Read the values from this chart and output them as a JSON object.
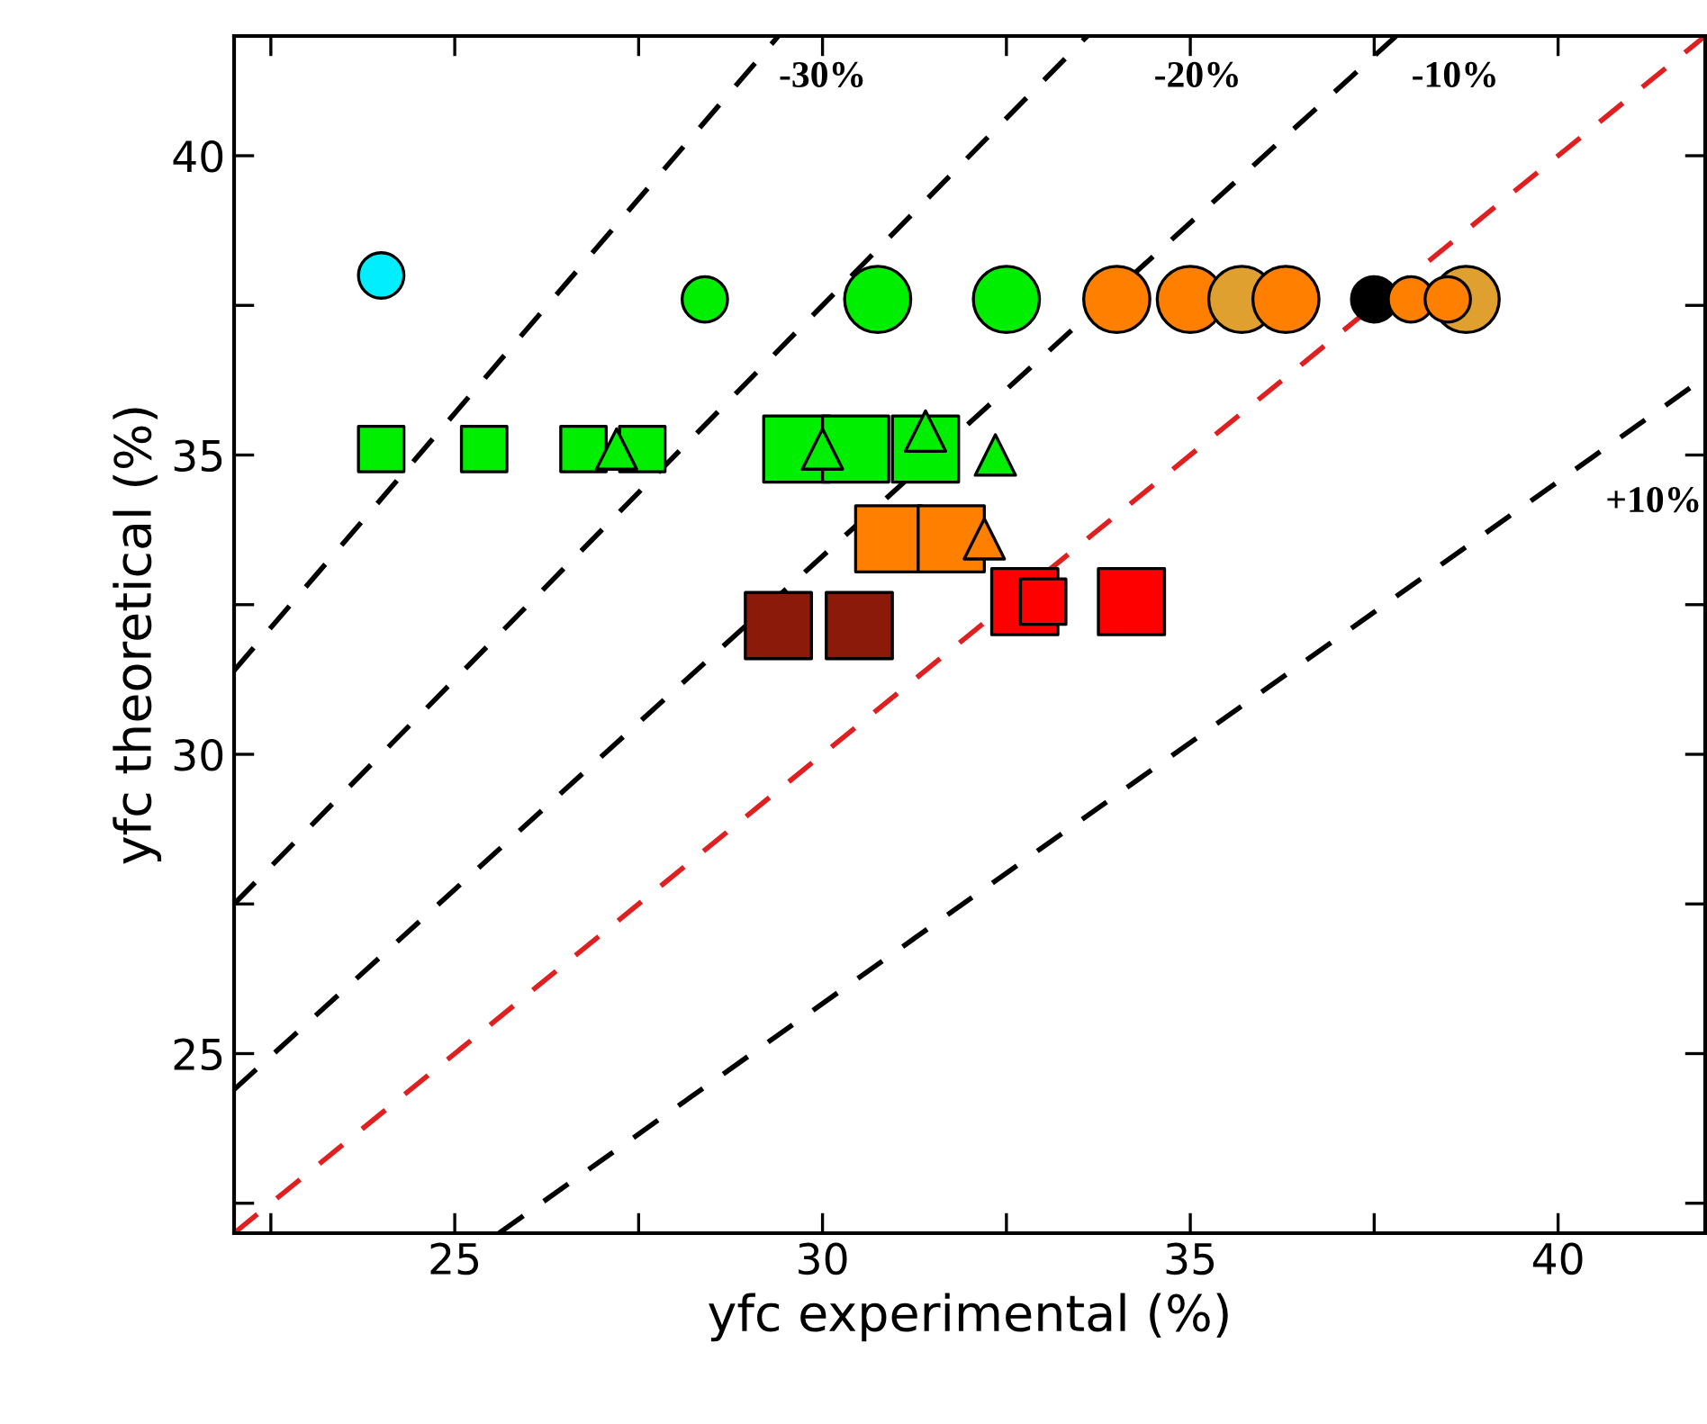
{
  "chart_data": {
    "type": "scatter",
    "xlabel": "yfc experimental (%)",
    "ylabel": "yfc theoretical (%)",
    "xlim": [
      22,
      42
    ],
    "ylim": [
      22,
      42
    ],
    "xticks": [
      {
        "value": 22.5,
        "label": null
      },
      25,
      {
        "value": 27.5,
        "label": null
      },
      30,
      {
        "value": 32.5,
        "label": null
      },
      35,
      {
        "value": 37.5,
        "label": null
      },
      40
    ],
    "yticks": [
      {
        "value": 22.5,
        "label": null
      },
      25,
      {
        "value": 27.5,
        "label": null
      },
      30,
      {
        "value": 32.5,
        "label": null
      },
      35,
      {
        "value": 37.5,
        "label": null
      },
      40
    ],
    "grid": false,
    "legend": false,
    "series": [
      {
        "type": "line",
        "x": [
          22,
          29.4
        ],
        "values": [
          31.4,
          42
        ],
        "color": "#000000",
        "line_style": "dashed",
        "marker": "none"
      },
      {
        "type": "line",
        "x": [
          22,
          33.6
        ],
        "values": [
          27.5,
          42
        ],
        "color": "#000000",
        "line_style": "dashed",
        "marker": "none"
      },
      {
        "type": "line",
        "x": [
          22,
          37.8
        ],
        "values": [
          24.4,
          42
        ],
        "color": "#000000",
        "line_style": "dashed",
        "marker": "none"
      },
      {
        "type": "line",
        "x": [
          22,
          42
        ],
        "values": [
          22,
          42
        ],
        "color": "#e02020",
        "line_style": "dashed",
        "marker": "none"
      },
      {
        "type": "line",
        "x": [
          25.6,
          42
        ],
        "values": [
          22,
          36.3
        ],
        "color": "#000000",
        "line_style": "dashed",
        "marker": "none"
      },
      {
        "marker": "circle",
        "x": [
          24.0,
          28.4,
          37.5,
          38.0,
          38.5
        ],
        "values": [
          38.0,
          37.6,
          37.6,
          37.6,
          37.6
        ],
        "colors": [
          "#00eeff",
          "#00ee00",
          "#000000",
          "#ff8000",
          "#ff8000"
        ]
      },
      {
        "marker": "circle",
        "x": [
          30.75,
          32.5,
          34.0,
          35.0,
          35.7,
          36.3,
          38.75
        ],
        "values": [
          37.6,
          37.6,
          37.6,
          37.6,
          37.6,
          37.6,
          37.6
        ],
        "colors": [
          "#00ee00",
          "#00ee00",
          "#ff8000",
          "#ff8000",
          "#e0a030",
          "#ff8000",
          "#e0a030"
        ]
      },
      {
        "marker": "square",
        "x": [
          24.0,
          25.4,
          26.75,
          27.55,
          33.0
        ],
        "values": [
          35.1,
          35.1,
          35.1,
          35.1,
          32.55
        ],
        "colors": [
          "#00ee00",
          "#00ee00",
          "#00ee00",
          "#00ee00",
          "#ff0000"
        ]
      },
      {
        "marker": "triangle",
        "x": [
          27.2,
          30.0,
          31.4,
          32.35,
          32.2
        ],
        "values": [
          35.1,
          35.1,
          35.4,
          35.0,
          33.6
        ],
        "colors": [
          "#00ee00",
          "#00ee00",
          "#00ee00",
          "#00ee00",
          "#ff8000"
        ]
      },
      {
        "marker": "square",
        "x": [
          29.65,
          30.45,
          31.4,
          30.9,
          31.75,
          29.4,
          30.5,
          32.75,
          34.2
        ],
        "values": [
          35.1,
          35.1,
          35.1,
          33.6,
          33.6,
          32.15,
          32.15,
          32.55,
          32.55
        ],
        "colors": [
          "#00ee00",
          "#00ee00",
          "#00ee00",
          "#ff8000",
          "#ff8000",
          "#8b1a0a",
          "#8b1a0a",
          "#ff0000",
          "#ff0000"
        ]
      }
    ],
    "annotations": [
      "-30%",
      "-20%",
      "-10%",
      "+10%"
    ]
  }
}
